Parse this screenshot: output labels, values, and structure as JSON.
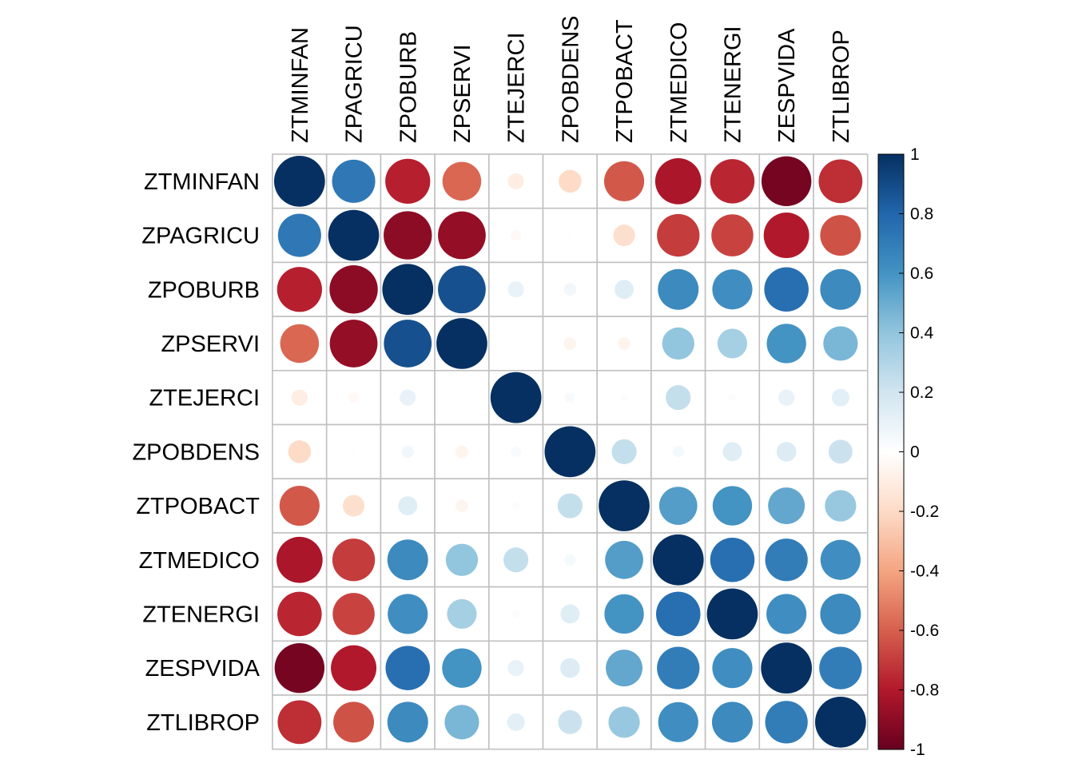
{
  "chart_data": {
    "type": "heatmap",
    "variables": [
      "ZTMINFAN",
      "ZPAGRICU",
      "ZPOBURB",
      "ZPSERVI",
      "ZTEJERCI",
      "ZPOBDENS",
      "ZTPOBACT",
      "ZTMEDICO",
      "ZTENERGI",
      "ZESPVIDA",
      "ZTLIBROP"
    ],
    "matrix": [
      [
        1.0,
        0.72,
        -0.78,
        -0.58,
        -0.1,
        -0.2,
        -0.62,
        -0.82,
        -0.76,
        -0.96,
        -0.74
      ],
      [
        0.72,
        1.0,
        -0.9,
        -0.88,
        -0.04,
        0.01,
        -0.18,
        -0.7,
        -0.68,
        -0.8,
        -0.64
      ],
      [
        -0.78,
        -0.9,
        1.0,
        0.88,
        0.1,
        0.06,
        0.14,
        0.64,
        0.62,
        0.76,
        0.64
      ],
      [
        -0.58,
        -0.88,
        0.88,
        1.0,
        0.0,
        -0.06,
        -0.06,
        0.4,
        0.34,
        0.6,
        0.46
      ],
      [
        -0.1,
        -0.04,
        0.1,
        0.0,
        1.0,
        0.04,
        0.02,
        0.24,
        0.02,
        0.1,
        0.12
      ],
      [
        -0.2,
        0.01,
        0.06,
        -0.06,
        0.04,
        1.0,
        0.24,
        0.05,
        0.14,
        0.15,
        0.22
      ],
      [
        -0.62,
        -0.18,
        0.14,
        -0.06,
        0.02,
        0.24,
        1.0,
        0.56,
        0.6,
        0.52,
        0.38
      ],
      [
        -0.82,
        -0.7,
        0.64,
        0.4,
        0.24,
        0.05,
        0.56,
        1.0,
        0.76,
        0.7,
        0.62
      ],
      [
        -0.76,
        -0.68,
        0.62,
        0.34,
        0.02,
        0.14,
        0.6,
        0.76,
        1.0,
        0.62,
        0.64
      ],
      [
        -0.96,
        -0.8,
        0.76,
        0.6,
        0.1,
        0.15,
        0.52,
        0.7,
        0.62,
        1.0,
        0.7
      ],
      [
        -0.74,
        -0.64,
        0.64,
        0.46,
        0.12,
        0.22,
        0.38,
        0.62,
        0.64,
        0.7,
        1.0
      ]
    ],
    "color_scale": {
      "min": -1,
      "max": 1,
      "ticks": [
        "1",
        "0.8",
        "0.6",
        "0.4",
        "0.2",
        "0",
        "-0.2",
        "-0.4",
        "-0.6",
        "-0.8",
        "-1"
      ],
      "tick_values": [
        1,
        0.8,
        0.6,
        0.4,
        0.2,
        0,
        -0.2,
        -0.4,
        -0.6,
        -0.8,
        -1
      ],
      "palette": [
        "#67001F",
        "#B2182B",
        "#D6604D",
        "#F4A582",
        "#FDDBC7",
        "#FFFFFF",
        "#D1E5F0",
        "#92C5DE",
        "#4393C3",
        "#2166AC",
        "#053061"
      ]
    },
    "grid": true,
    "grid_color": "#C0C0C0",
    "legend_placement": "right"
  }
}
